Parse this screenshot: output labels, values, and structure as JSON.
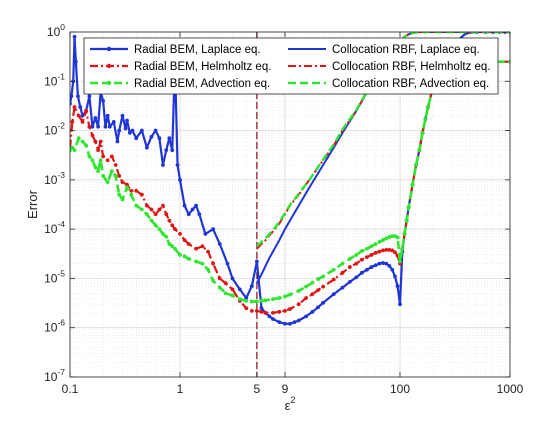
{
  "chart_data": {
    "type": "line",
    "xscale": "log",
    "yscale": "log",
    "xlim": [
      0.1,
      1000
    ],
    "ylim": [
      1e-07,
      1
    ],
    "xlabel": "ε",
    "xlabel_sup": "2",
    "ylabel": "Error",
    "xticks": [
      {
        "value": 0.1,
        "label": "0.1"
      },
      {
        "value": 1,
        "label": "1"
      },
      {
        "value": 5,
        "label": "5"
      },
      {
        "value": 9,
        "label": "9"
      },
      {
        "value": 100,
        "label": "100"
      },
      {
        "value": 1000,
        "label": "1000"
      }
    ],
    "yticks": [
      {
        "value": 1e-07,
        "exp": "-7"
      },
      {
        "value": 1e-06,
        "exp": "-6"
      },
      {
        "value": 1e-05,
        "exp": "-5"
      },
      {
        "value": 0.0001,
        "exp": "-4"
      },
      {
        "value": 0.001,
        "exp": "-3"
      },
      {
        "value": 0.01,
        "exp": "-2"
      },
      {
        "value": 0.1,
        "exp": "-1"
      },
      {
        "value": 1,
        "exp": "0"
      }
    ],
    "tick_base": "10",
    "grid": true,
    "minor_grid": true,
    "vline": {
      "x": 5,
      "color": "#8b1a2b"
    },
    "legend_position": "top",
    "series": [
      {
        "name": "Radial BEM, Laplace eq.",
        "color": "#1f35d6",
        "dash": "solid",
        "marker": "dot",
        "width": 2.2,
        "x": [
          0.1,
          0.103,
          0.107,
          0.11,
          0.113,
          0.118,
          0.124,
          0.13,
          0.14,
          0.15,
          0.16,
          0.17,
          0.18,
          0.19,
          0.2,
          0.21,
          0.22,
          0.23,
          0.25,
          0.27,
          0.28,
          0.3,
          0.32,
          0.33,
          0.35,
          0.37,
          0.4,
          0.45,
          0.5,
          0.55,
          0.6,
          0.65,
          0.7,
          0.75,
          0.8,
          0.85,
          0.9,
          0.95,
          1.0,
          1.1,
          1.2,
          1.3,
          1.4,
          1.5,
          1.7,
          2.0,
          2.3,
          2.7,
          3.0,
          3.5,
          4.0,
          4.5,
          5.0,
          5.5,
          6,
          6.5,
          7,
          8,
          9,
          10,
          11,
          12,
          14,
          16,
          18,
          20,
          25,
          30,
          35,
          40,
          45,
          50,
          55,
          60,
          65,
          70,
          75,
          80,
          85,
          90,
          95,
          100,
          105,
          110,
          115,
          120,
          130,
          140,
          150,
          160,
          170,
          180,
          200,
          250,
          300,
          400,
          500,
          600,
          700,
          800,
          900,
          1000
        ],
        "y": [
          0.035,
          0.05,
          0.1,
          0.8,
          0.25,
          0.05,
          0.03,
          0.02,
          0.025,
          0.05,
          0.012,
          0.018,
          0.012,
          0.06,
          0.04,
          0.012,
          0.02,
          0.012,
          0.015,
          0.006,
          0.01,
          0.02,
          0.011,
          0.016,
          0.009,
          0.01,
          0.007,
          0.01,
          0.0045,
          0.0075,
          0.01,
          0.007,
          0.002,
          0.004,
          0.007,
          0.004,
          0.25,
          0.002,
          0.001,
          0.0003,
          0.0002,
          0.00025,
          0.0003,
          0.0002,
          8e-05,
          0.0001,
          5e-05,
          2e-05,
          1e-05,
          6e-06,
          4e-06,
          7e-06,
          2.2e-05,
          2.5e-06,
          2e-06,
          1.7e-06,
          1.5e-06,
          1.3e-06,
          1.2e-06,
          1.2e-06,
          1.3e-06,
          1.4e-06,
          1.7e-06,
          2.1e-06,
          2.6e-06,
          3.2e-06,
          4.8e-06,
          6.5e-06,
          8.5e-06,
          1.05e-05,
          1.3e-05,
          1.5e-05,
          1.7e-05,
          1.85e-05,
          2e-05,
          2.05e-05,
          2e-05,
          1.8e-05,
          1.5e-05,
          1.1e-05,
          7e-06,
          3e-06,
          3.5e-05,
          8e-05,
          0.00015,
          0.00028,
          0.0008,
          0.002,
          0.004,
          0.009,
          0.017,
          0.03,
          0.08,
          0.25,
          0.55,
          0.95,
          1,
          1,
          1,
          1,
          1,
          1
        ]
      },
      {
        "name": "Radial BEM, Helmholtz eq.",
        "color": "#e01414",
        "dash": "dashdot",
        "marker": "dot",
        "width": 2.2,
        "x": [
          0.1,
          0.105,
          0.11,
          0.12,
          0.13,
          0.14,
          0.15,
          0.16,
          0.17,
          0.18,
          0.19,
          0.2,
          0.22,
          0.24,
          0.26,
          0.28,
          0.3,
          0.33,
          0.36,
          0.4,
          0.45,
          0.5,
          0.55,
          0.6,
          0.65,
          0.7,
          0.75,
          0.8,
          0.85,
          0.9,
          1.0,
          1.1,
          1.2,
          1.4,
          1.6,
          1.8,
          2.0,
          2.3,
          2.6,
          3.0,
          3.5,
          4.0,
          4.5,
          5.0,
          5.5,
          6,
          7,
          8,
          9,
          10,
          12,
          14,
          16,
          18,
          20,
          25,
          30,
          35,
          40,
          45,
          50,
          55,
          60,
          65,
          70,
          75,
          80,
          85,
          90,
          95,
          100,
          105,
          110,
          115,
          120,
          130,
          140,
          150,
          160,
          170,
          180,
          200,
          250,
          300,
          400,
          500,
          700,
          1000
        ],
        "y": [
          0.0045,
          0.015,
          0.03,
          0.02,
          0.015,
          0.025,
          0.012,
          0.008,
          0.006,
          0.004,
          0.006,
          0.003,
          0.0025,
          0.003,
          0.002,
          0.0012,
          0.0009,
          0.0008,
          0.0006,
          0.0006,
          0.0005,
          0.0003,
          0.00025,
          0.0002,
          0.00025,
          0.0003,
          0.0002,
          0.00015,
          0.00012,
          0.0001,
          8e-05,
          6e-05,
          5e-05,
          4e-05,
          4.5e-05,
          3.5e-05,
          2e-05,
          1e-05,
          8e-06,
          6e-06,
          3.5e-06,
          2.5e-06,
          2.2e-06,
          2.2e-06,
          2.1e-06,
          2e-06,
          2e-06,
          2.1e-06,
          2.2e-06,
          2.4e-06,
          3e-06,
          4e-06,
          4.8e-06,
          5.8e-06,
          6.8e-06,
          9.5e-06,
          1.3e-05,
          1.7e-05,
          2e-05,
          2.4e-05,
          2.7e-05,
          3e-05,
          3.3e-05,
          3.5e-05,
          3.7e-05,
          3.8e-05,
          3.8e-05,
          3.7e-05,
          3.4e-05,
          2.9e-05,
          2e-05,
          4e-05,
          8e-05,
          0.00015,
          0.00028,
          0.0008,
          0.002,
          0.004,
          0.009,
          0.017,
          0.03,
          0.08,
          0.2,
          0.25,
          0.25,
          0.25,
          0.25,
          0.25
        ]
      },
      {
        "name": "Radial BEM, Advection eq.",
        "color": "#2ee62e",
        "dash": "dashed",
        "marker": "dot",
        "width": 2.6,
        "x": [
          0.1,
          0.105,
          0.11,
          0.12,
          0.13,
          0.14,
          0.15,
          0.16,
          0.17,
          0.18,
          0.19,
          0.2,
          0.22,
          0.24,
          0.26,
          0.28,
          0.3,
          0.33,
          0.36,
          0.4,
          0.45,
          0.5,
          0.55,
          0.6,
          0.65,
          0.7,
          0.75,
          0.8,
          0.85,
          0.9,
          1.0,
          1.1,
          1.2,
          1.4,
          1.6,
          1.8,
          2.0,
          2.3,
          2.6,
          3.0,
          3.5,
          4.0,
          4.5,
          5.0,
          5.5,
          6,
          7,
          8,
          9,
          10,
          12,
          14,
          16,
          18,
          20,
          25,
          30,
          35,
          40,
          45,
          50,
          55,
          60,
          65,
          70,
          75,
          80,
          85,
          90,
          95,
          100,
          105,
          110,
          115,
          120,
          130,
          140,
          150,
          160,
          170,
          180,
          200,
          250,
          300,
          400,
          500,
          700,
          1000
        ],
        "y": [
          0.004,
          0.0045,
          0.004,
          0.007,
          0.006,
          0.005,
          0.003,
          0.0025,
          0.0018,
          0.0015,
          0.0025,
          0.0012,
          0.0009,
          0.0015,
          0.0012,
          0.0005,
          0.0004,
          0.0007,
          0.0005,
          0.0003,
          0.00025,
          0.0002,
          0.00015,
          0.00012,
          0.0001,
          8e-05,
          7e-05,
          5e-05,
          4.5e-05,
          4e-05,
          3e-05,
          2.8e-05,
          2.5e-05,
          2.2e-05,
          2e-05,
          1.5e-05,
          9e-06,
          6.5e-06,
          5e-06,
          4.5e-06,
          3.8e-06,
          3.5e-06,
          3.4e-06,
          3.4e-06,
          3.5e-06,
          3.6e-06,
          3.8e-06,
          4e-06,
          4.3e-06,
          4.7e-06,
          5.6e-06,
          6.8e-06,
          8.2e-06,
          9.7e-06,
          1.1e-05,
          1.5e-05,
          2e-05,
          2.5e-05,
          3e-05,
          3.6e-05,
          4e-05,
          4.5e-05,
          5e-05,
          5.5e-05,
          6e-05,
          6.5e-05,
          6.9e-05,
          7.2e-05,
          7.2e-05,
          6.8e-05,
          2.2e-05,
          4e-05,
          8e-05,
          0.00015,
          0.00028,
          0.0008,
          0.002,
          0.004,
          0.009,
          0.017,
          0.03,
          0.08,
          0.2,
          0.25,
          0.25,
          0.25,
          0.25,
          0.25
        ]
      },
      {
        "name": "Collocation RBF, Laplace eq.",
        "color": "#1f35d6",
        "dash": "solid",
        "marker": "none",
        "width": 2.0,
        "x": [
          5.0,
          5.5,
          6,
          6.5,
          7,
          8,
          9,
          10,
          12,
          15,
          20,
          25,
          30,
          40,
          50,
          60,
          70,
          80,
          90,
          100,
          110,
          120,
          130,
          140,
          150,
          160,
          180,
          200,
          250,
          300,
          400,
          500,
          700,
          1000
        ],
        "y": [
          8e-06,
          1.2e-05,
          1.8e-05,
          2.6e-05,
          3.5e-05,
          6e-05,
          0.0001,
          0.00015,
          0.0003,
          0.0007,
          0.002,
          0.0045,
          0.009,
          0.025,
          0.06,
          0.12,
          0.22,
          0.35,
          0.5,
          0.65,
          0.8,
          0.9,
          0.95,
          0.98,
          1,
          1,
          1,
          1,
          1,
          1,
          1,
          1,
          1,
          1
        ]
      },
      {
        "name": "Collocation RBF, Helmholtz eq.",
        "color": "#e01414",
        "dash": "dashdot",
        "marker": "none",
        "width": 2.0,
        "x": [
          5.0,
          5.5,
          6,
          6.5,
          7,
          8,
          9,
          10,
          12,
          15,
          20,
          25,
          30,
          40,
          50,
          60,
          70,
          80,
          90,
          100,
          110,
          120,
          130,
          140,
          150,
          160,
          180,
          200,
          250,
          300,
          400,
          500,
          700,
          1000
        ],
        "y": [
          4e-05,
          5e-05,
          6e-05,
          7.5e-05,
          9e-05,
          0.00013,
          0.0002,
          0.0003,
          0.0005,
          0.001,
          0.0025,
          0.005,
          0.01,
          0.025,
          0.06,
          0.12,
          0.22,
          0.35,
          0.5,
          0.65,
          0.8,
          0.9,
          0.95,
          0.98,
          1,
          1,
          1,
          1,
          1,
          1,
          1,
          1,
          1,
          1
        ]
      },
      {
        "name": "Collocation RBF, Advection eq.",
        "color": "#2ee62e",
        "dash": "dashed",
        "marker": "none",
        "width": 2.4,
        "x": [
          5.0,
          5.5,
          6,
          6.5,
          7,
          8,
          9,
          10,
          12,
          15,
          20,
          25,
          30,
          40,
          50,
          60,
          70,
          80,
          90,
          100,
          110,
          120,
          130,
          140,
          150,
          160,
          180,
          200,
          250,
          300,
          400,
          500,
          700,
          1000
        ],
        "y": [
          4.5e-05,
          5.5e-05,
          6.5e-05,
          8e-05,
          9.5e-05,
          0.00014,
          0.00021,
          0.00031,
          0.00052,
          0.001,
          0.0026,
          0.0052,
          0.0105,
          0.026,
          0.062,
          0.12,
          0.22,
          0.35,
          0.5,
          0.65,
          0.8,
          0.9,
          0.95,
          0.98,
          1,
          1,
          1,
          1,
          1,
          1,
          1,
          1,
          1,
          1
        ]
      }
    ]
  }
}
